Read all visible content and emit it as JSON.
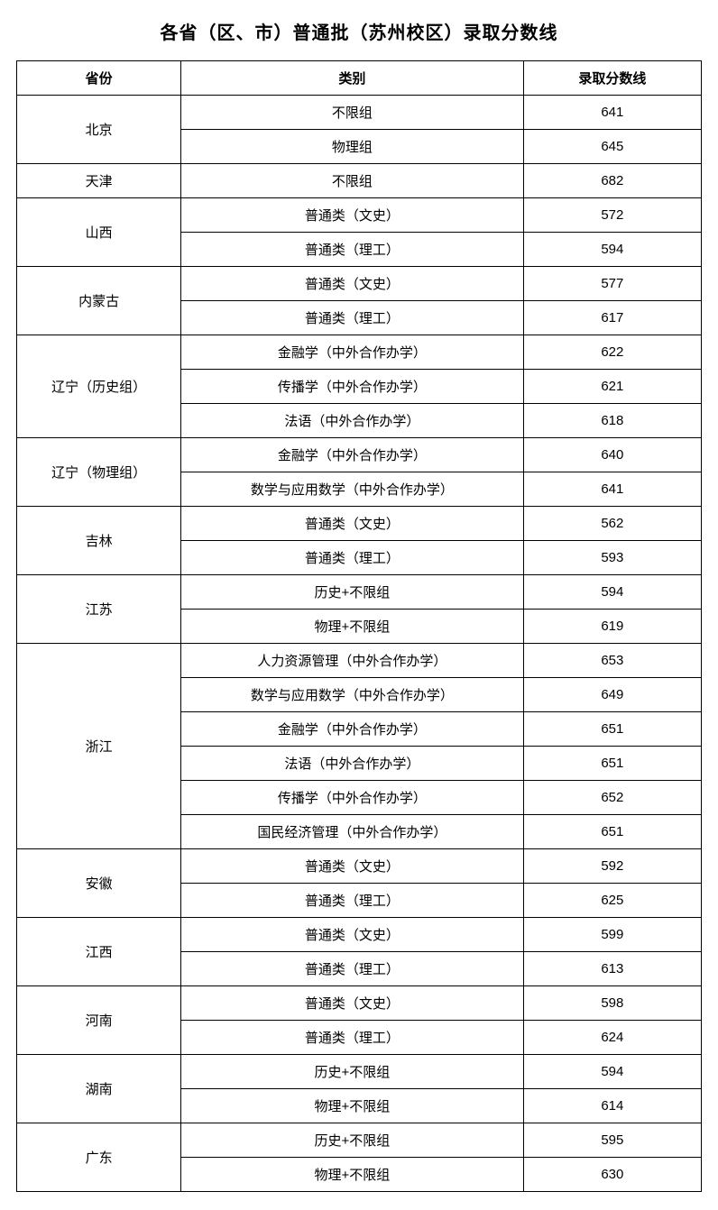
{
  "title": "各省（区、市）普通批（苏州校区）录取分数线",
  "headers": {
    "province": "省份",
    "category": "类别",
    "score": "录取分数线"
  },
  "provinces": [
    {
      "name": "北京",
      "rows": [
        {
          "category": "不限组",
          "score": "641"
        },
        {
          "category": "物理组",
          "score": "645"
        }
      ]
    },
    {
      "name": "天津",
      "rows": [
        {
          "category": "不限组",
          "score": "682"
        }
      ]
    },
    {
      "name": "山西",
      "rows": [
        {
          "category": "普通类（文史）",
          "score": "572"
        },
        {
          "category": "普通类（理工）",
          "score": "594"
        }
      ]
    },
    {
      "name": "内蒙古",
      "rows": [
        {
          "category": "普通类（文史）",
          "score": "577"
        },
        {
          "category": "普通类（理工）",
          "score": "617"
        }
      ]
    },
    {
      "name": "辽宁（历史组）",
      "rows": [
        {
          "category": "金融学（中外合作办学）",
          "score": "622"
        },
        {
          "category": "传播学（中外合作办学）",
          "score": "621"
        },
        {
          "category": "法语（中外合作办学）",
          "score": "618"
        }
      ]
    },
    {
      "name": "辽宁（物理组）",
      "rows": [
        {
          "category": "金融学（中外合作办学）",
          "score": "640"
        },
        {
          "category": "数学与应用数学（中外合作办学）",
          "score": "641"
        }
      ]
    },
    {
      "name": "吉林",
      "rows": [
        {
          "category": "普通类（文史）",
          "score": "562"
        },
        {
          "category": "普通类（理工）",
          "score": "593"
        }
      ]
    },
    {
      "name": "江苏",
      "rows": [
        {
          "category": "历史+不限组",
          "score": "594"
        },
        {
          "category": "物理+不限组",
          "score": "619"
        }
      ]
    },
    {
      "name": "浙江",
      "rows": [
        {
          "category": "人力资源管理（中外合作办学）",
          "score": "653"
        },
        {
          "category": "数学与应用数学（中外合作办学）",
          "score": "649"
        },
        {
          "category": "金融学（中外合作办学）",
          "score": "651"
        },
        {
          "category": "法语（中外合作办学）",
          "score": "651"
        },
        {
          "category": "传播学（中外合作办学）",
          "score": "652"
        },
        {
          "category": "国民经济管理（中外合作办学）",
          "score": "651"
        }
      ]
    },
    {
      "name": "安徽",
      "rows": [
        {
          "category": "普通类（文史）",
          "score": "592"
        },
        {
          "category": "普通类（理工）",
          "score": "625"
        }
      ]
    },
    {
      "name": "江西",
      "rows": [
        {
          "category": "普通类（文史）",
          "score": "599"
        },
        {
          "category": "普通类（理工）",
          "score": "613"
        }
      ]
    },
    {
      "name": "河南",
      "rows": [
        {
          "category": "普通类（文史）",
          "score": "598"
        },
        {
          "category": "普通类（理工）",
          "score": "624"
        }
      ]
    },
    {
      "name": "湖南",
      "rows": [
        {
          "category": "历史+不限组",
          "score": "594"
        },
        {
          "category": "物理+不限组",
          "score": "614"
        }
      ]
    },
    {
      "name": "广东",
      "rows": [
        {
          "category": "历史+不限组",
          "score": "595"
        },
        {
          "category": "物理+不限组",
          "score": "630"
        }
      ]
    }
  ]
}
